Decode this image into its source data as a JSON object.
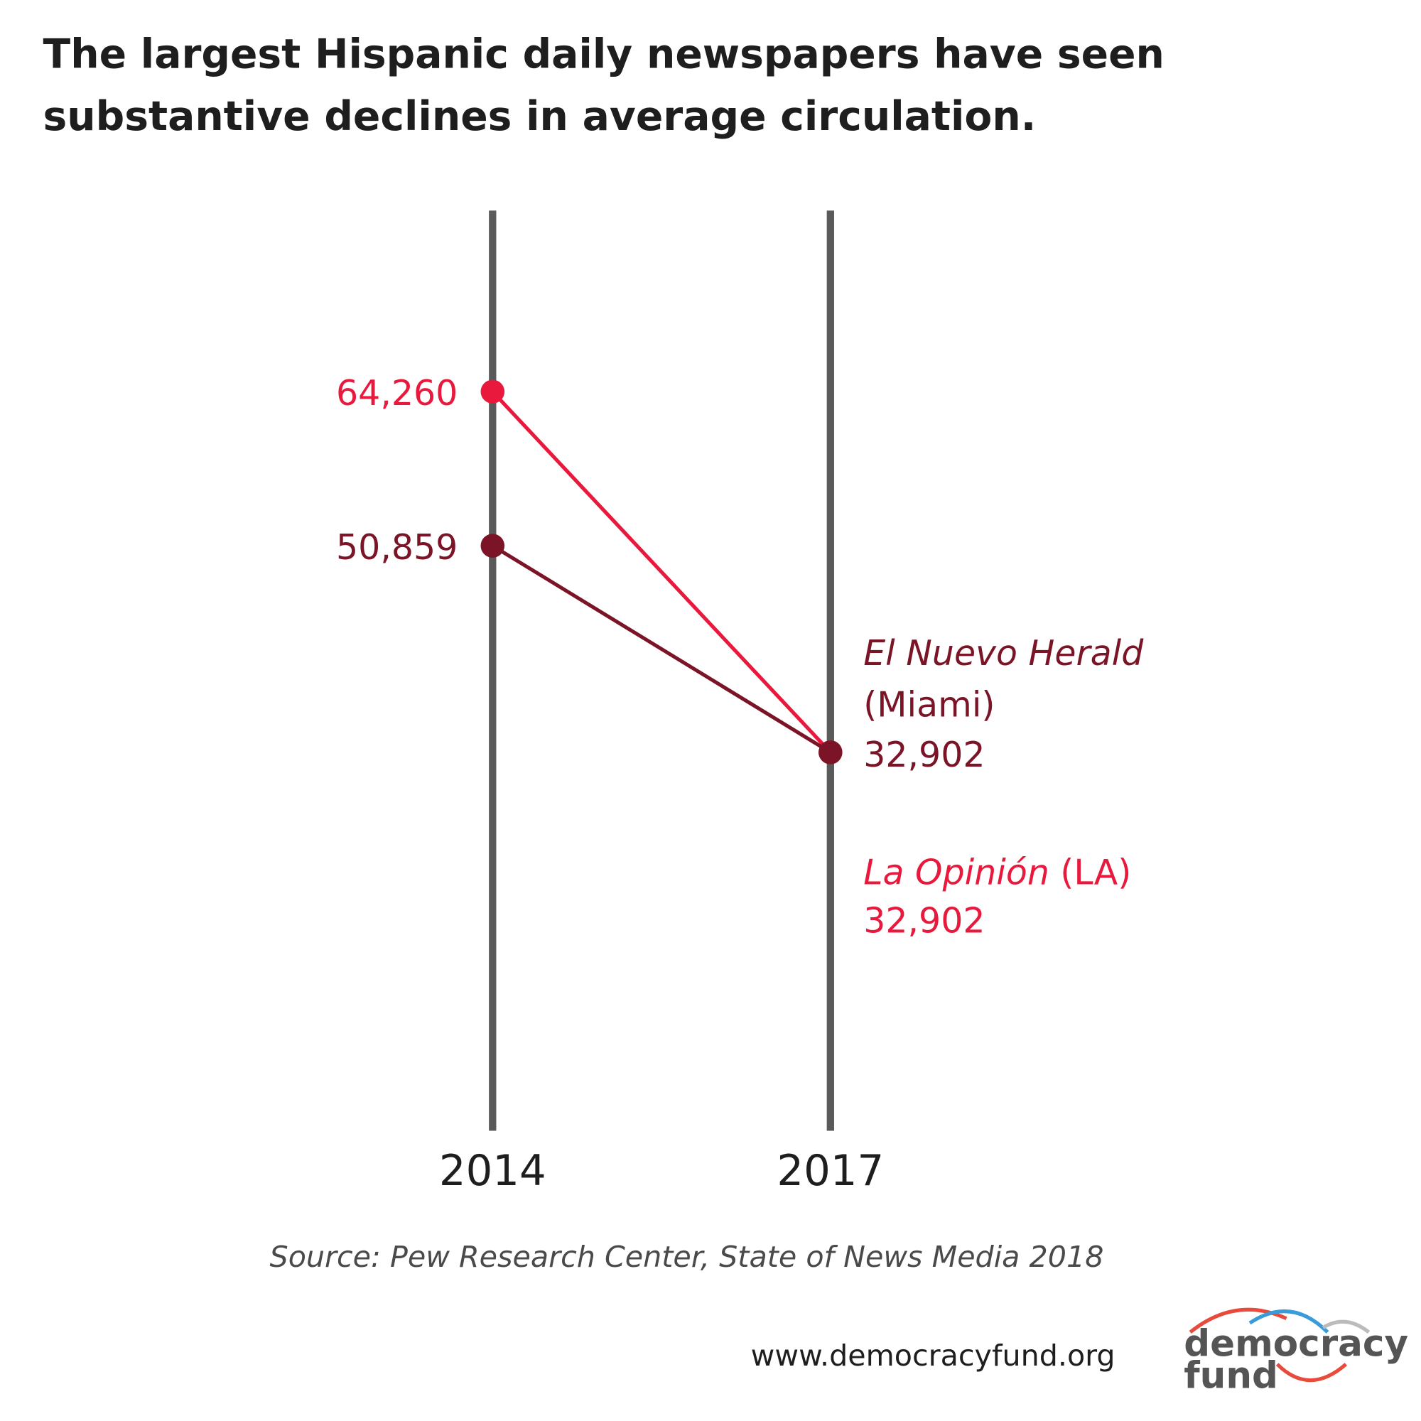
{
  "chart_data": {
    "type": "slope",
    "title": [
      "The largest Hispanic daily newspapers have seen",
      "substantive declines in average circulation."
    ],
    "categories": [
      "2014",
      "2017"
    ],
    "ylim": [
      0,
      80000
    ],
    "series": [
      {
        "name": "La Opinión",
        "location": "(LA)",
        "color": "#e8193c",
        "values": [
          64260,
          32902
        ],
        "value_labels": [
          "64,260",
          "32,902"
        ]
      },
      {
        "name": "El Nuevo Herald",
        "location": "(Miami)",
        "color": "#7a1426",
        "values": [
          50859,
          32902
        ],
        "value_labels": [
          "50,859",
          "32,902"
        ]
      }
    ],
    "source": "Source: Pew Research Center, State of News Media 2018"
  },
  "footer": {
    "url": "www.democracyfund.org",
    "logo": [
      "democracy",
      "fund"
    ]
  }
}
